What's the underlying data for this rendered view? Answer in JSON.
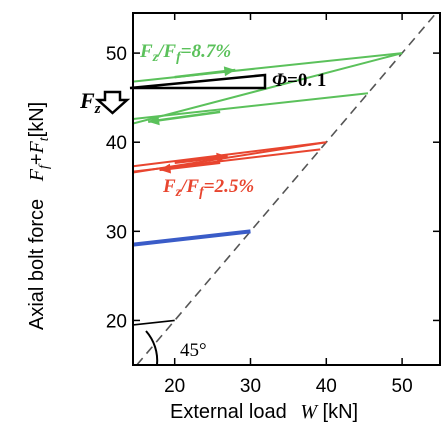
{
  "chart_data": {
    "type": "line",
    "title": "",
    "xlabel": "External load",
    "xlabel_symbol": "W",
    "xlabel_unit": "[kN]",
    "ylabel": "Axial bolt force",
    "ylabel_symbol": "F",
    "ylabel_sub1": "f",
    "ylabel_plus": "+",
    "ylabel_sub2": "t",
    "ylabel_unit": "[kN]",
    "xlim": [
      14.5,
      55
    ],
    "ylim": [
      15,
      54.5
    ],
    "x_ticks": [
      20,
      30,
      40,
      50
    ],
    "y_ticks": [
      20,
      30,
      40,
      50
    ],
    "grid": false,
    "reference_line": {
      "name": "45-degree line",
      "x": [
        15,
        54.5
      ],
      "y": [
        15,
        54.5
      ],
      "style": "dashed",
      "color": "#555555"
    },
    "series": [
      {
        "color": "#5bc15b",
        "x": [
          14.5,
          50
        ],
        "y": [
          46.8,
          50
        ]
      },
      {
        "color": "#5bc15b",
        "x": [
          14.5,
          45.5
        ],
        "y": [
          42.6,
          45.5
        ]
      },
      {
        "color": "#5bc15b",
        "x": [
          14.5,
          50
        ],
        "y": [
          42.1,
          50
        ]
      },
      {
        "color": "#e8452f",
        "x": [
          14.5,
          40
        ],
        "y": [
          37.3,
          40
        ]
      },
      {
        "color": "#e8452f",
        "x": [
          14.5,
          39.2
        ],
        "y": [
          36.7,
          39.2
        ]
      },
      {
        "color": "#e8452f",
        "x": [
          14.5,
          40
        ],
        "y": [
          36.6,
          40
        ]
      },
      {
        "color": "#3a5cc8",
        "x": [
          14.5,
          30
        ],
        "y": [
          28.5,
          30
        ]
      },
      {
        "color": "#000000",
        "x": [
          14.5,
          20
        ],
        "y": [
          19.5,
          20
        ]
      }
    ],
    "arrows": [
      {
        "color": "#5bc15b",
        "from": [
          20,
          47.3
        ],
        "to": [
          28,
          48.1
        ]
      },
      {
        "color": "#5bc15b",
        "from": [
          26,
          43.4
        ],
        "to": [
          16.5,
          42.3
        ]
      },
      {
        "color": "#e8452f",
        "from": [
          20,
          37.7
        ],
        "to": [
          27,
          38.4
        ]
      },
      {
        "color": "#e8452f",
        "from": [
          26,
          37.7
        ],
        "to": [
          18,
          36.9
        ]
      }
    ],
    "annotations": {
      "green_label": {
        "num": "F",
        "num_sub": "z",
        "slash": "/",
        "den": "F",
        "den_sub": "f",
        "value": "=8.7%"
      },
      "red_label": {
        "num": "F",
        "num_sub": "z",
        "slash": "/",
        "den": "F",
        "den_sub": "f",
        "value": "=2.5%"
      },
      "phi_label": {
        "symbol": "Φ",
        "value": "=0. 1"
      },
      "fz_label": {
        "symbol": "F",
        "sub": "z"
      },
      "angle_label": "45°"
    }
  }
}
